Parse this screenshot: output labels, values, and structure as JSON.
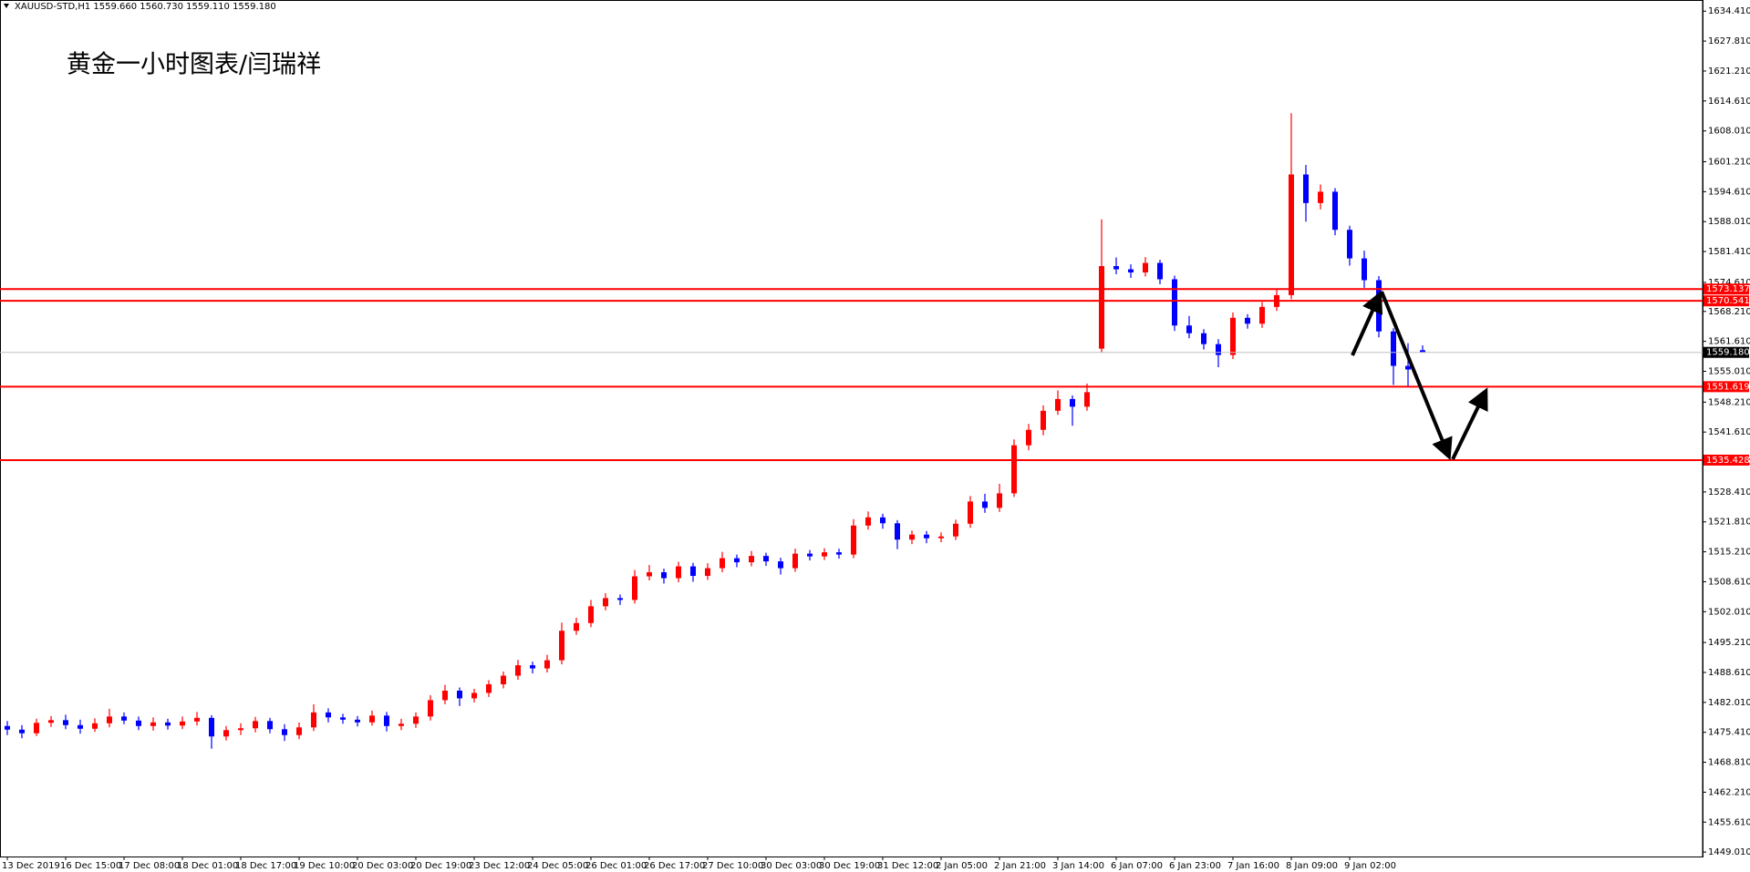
{
  "chart_data": {
    "type": "candlestick",
    "header": "XAUUSD-STD,H1  1559.660 1560.730 1559.110 1559.180",
    "annotation": "黄金一小时图表/闫瑞祥",
    "up_color": "#ff0000",
    "down_color": "#0000ff",
    "categories": [
      "13 Dec 2019",
      null,
      null,
      null,
      "16 Dec 15:00",
      null,
      null,
      null,
      "17 Dec 08:00",
      null,
      null,
      null,
      "18 Dec 01:00",
      null,
      null,
      null,
      "18 Dec 17:00",
      null,
      null,
      null,
      "19 Dec 10:00",
      null,
      null,
      null,
      "20 Dec 03:00",
      null,
      null,
      null,
      "20 Dec 19:00",
      null,
      null,
      null,
      "23 Dec 12:00",
      null,
      null,
      null,
      "24 Dec 05:00",
      null,
      null,
      null,
      "26 Dec 01:00",
      null,
      null,
      null,
      "26 Dec 17:00",
      null,
      null,
      null,
      "27 Dec 10:00",
      null,
      null,
      null,
      "30 Dec 03:00",
      null,
      null,
      null,
      "30 Dec 19:00",
      null,
      null,
      null,
      "31 Dec 12:00",
      null,
      null,
      null,
      "2 Jan 05:00",
      null,
      null,
      null,
      "2 Jan 21:00",
      null,
      null,
      null,
      "3 Jan 14:00",
      null,
      null,
      null,
      "6 Jan 07:00",
      null,
      null,
      null,
      "6 Jan 23:00",
      null,
      null,
      null,
      "7 Jan 16:00",
      null,
      null,
      null,
      "8 Jan 09:00",
      null,
      null,
      null,
      "9 Jan 02:00",
      null,
      null,
      null,
      null,
      null
    ],
    "open": [
      1476.8,
      1476.0,
      1475.2,
      1477.5,
      1478.1,
      1477.0,
      1476.2,
      1477.4,
      1478.9,
      1478.0,
      1476.8,
      1477.6,
      1476.9,
      1477.8,
      1478.6,
      1474.5,
      1475.9,
      1476.3,
      1477.9,
      1476.1,
      1474.8,
      1476.5,
      1479.8,
      1478.7,
      1478.2,
      1477.6,
      1479.1,
      1476.8,
      1477.3,
      1478.9,
      1482.5,
      1484.6,
      1482.9,
      1484.1,
      1486.0,
      1487.9,
      1490.2,
      1489.5,
      1491.3,
      1497.8,
      1499.5,
      1503.2,
      1505.0,
      1504.6,
      1509.8,
      1510.7,
      1509.4,
      1512.0,
      1509.9,
      1511.6,
      1513.8,
      1512.9,
      1514.3,
      1513.1,
      1511.6,
      1514.8,
      1514.2,
      1515.1,
      1514.6,
      1521.0,
      1522.8,
      1521.5,
      1517.9,
      1519.0,
      1518.2,
      1518.6,
      1521.4,
      1526.3,
      1524.9,
      1528.1,
      1538.7,
      1542.1,
      1546.3,
      1548.9,
      1547.2,
      1560.0,
      1578.2,
      1577.5,
      1576.8,
      1578.9,
      1575.3,
      1565.1,
      1563.4,
      1561.0,
      1558.6,
      1566.8,
      1565.5,
      1569.2,
      1571.8,
      1598.4,
      1592.1,
      1594.6,
      1586.2,
      1579.9,
      1575.1,
      1563.8,
      1556.2,
      1559.66
    ],
    "high": [
      1477.9,
      1477.0,
      1478.4,
      1479.0,
      1479.3,
      1478.2,
      1478.5,
      1480.6,
      1479.8,
      1478.9,
      1478.7,
      1478.4,
      1478.9,
      1479.9,
      1479.2,
      1476.8,
      1477.4,
      1478.8,
      1478.6,
      1477.2,
      1477.6,
      1481.6,
      1480.7,
      1479.5,
      1479.0,
      1480.2,
      1479.9,
      1478.4,
      1479.8,
      1483.6,
      1485.9,
      1485.3,
      1485.0,
      1486.9,
      1488.8,
      1491.4,
      1491.0,
      1492.5,
      1499.6,
      1500.7,
      1504.6,
      1506.1,
      1505.8,
      1511.2,
      1512.3,
      1511.5,
      1513.0,
      1512.8,
      1512.7,
      1515.2,
      1514.6,
      1515.4,
      1515.0,
      1513.9,
      1515.9,
      1515.6,
      1516.0,
      1515.9,
      1522.4,
      1524.1,
      1523.6,
      1522.2,
      1519.9,
      1519.8,
      1519.5,
      1522.3,
      1527.5,
      1528.0,
      1530.2,
      1540.0,
      1543.4,
      1547.5,
      1550.8,
      1549.7,
      1552.3,
      1588.5,
      1580.1,
      1578.6,
      1580.2,
      1579.6,
      1576.1,
      1567.2,
      1564.3,
      1562.1,
      1568.0,
      1567.6,
      1570.3,
      1573.0,
      1611.9,
      1600.5,
      1596.2,
      1595.4,
      1587.1,
      1581.6,
      1576.0,
      1564.5,
      1561.2,
      1560.73
    ],
    "low": [
      1474.8,
      1474.1,
      1474.6,
      1476.6,
      1476.1,
      1475.1,
      1475.5,
      1476.5,
      1477.2,
      1475.9,
      1475.8,
      1476.0,
      1476.1,
      1476.9,
      1471.8,
      1473.6,
      1474.8,
      1475.4,
      1475.2,
      1473.5,
      1473.9,
      1475.7,
      1477.6,
      1477.3,
      1476.7,
      1476.9,
      1475.6,
      1475.9,
      1476.4,
      1478.0,
      1481.6,
      1481.2,
      1482.0,
      1483.2,
      1485.1,
      1487.0,
      1488.4,
      1488.6,
      1490.4,
      1496.9,
      1498.6,
      1502.3,
      1503.5,
      1503.8,
      1508.9,
      1508.2,
      1508.5,
      1508.6,
      1509.0,
      1510.7,
      1511.8,
      1512.0,
      1512.1,
      1510.2,
      1510.8,
      1513.3,
      1513.4,
      1513.7,
      1513.8,
      1520.1,
      1520.3,
      1515.8,
      1516.9,
      1517.1,
      1517.3,
      1517.8,
      1520.5,
      1523.8,
      1524.0,
      1527.3,
      1537.6,
      1540.9,
      1545.4,
      1543.0,
      1546.3,
      1559.2,
      1576.4,
      1575.6,
      1575.9,
      1574.2,
      1563.9,
      1562.3,
      1559.8,
      1555.9,
      1557.7,
      1564.4,
      1564.6,
      1568.3,
      1570.9,
      1588.0,
      1590.7,
      1585.0,
      1578.3,
      1573.4,
      1562.5,
      1552.0,
      1551.7,
      1559.11
    ],
    "close": [
      1476.0,
      1475.2,
      1477.5,
      1478.1,
      1477.0,
      1476.2,
      1477.4,
      1478.9,
      1478.0,
      1476.8,
      1477.6,
      1476.9,
      1477.8,
      1478.6,
      1474.5,
      1475.9,
      1476.3,
      1477.9,
      1476.1,
      1474.8,
      1476.5,
      1479.8,
      1478.7,
      1478.2,
      1477.6,
      1479.1,
      1476.8,
      1477.3,
      1478.9,
      1482.5,
      1484.6,
      1482.9,
      1484.1,
      1486.0,
      1487.9,
      1490.2,
      1489.5,
      1491.3,
      1497.8,
      1499.5,
      1503.2,
      1505.0,
      1504.6,
      1509.8,
      1510.7,
      1509.4,
      1512.0,
      1509.9,
      1511.6,
      1513.8,
      1512.9,
      1514.3,
      1513.1,
      1511.6,
      1514.8,
      1514.2,
      1515.1,
      1514.6,
      1521.0,
      1522.8,
      1521.5,
      1517.9,
      1519.0,
      1518.2,
      1518.6,
      1521.4,
      1526.3,
      1524.9,
      1528.1,
      1538.7,
      1542.1,
      1546.3,
      1548.9,
      1547.2,
      1550.4,
      1578.2,
      1577.5,
      1576.8,
      1578.9,
      1575.3,
      1565.1,
      1563.4,
      1561.0,
      1558.6,
      1566.8,
      1565.5,
      1569.2,
      1571.8,
      1598.4,
      1592.1,
      1594.6,
      1586.2,
      1579.9,
      1575.1,
      1563.8,
      1556.2,
      1555.4,
      1559.18
    ],
    "ylim": [
      1448.03,
      1636.87
    ],
    "yticks": [
      {
        "value": 1634.41,
        "label": "1634.410"
      },
      {
        "value": 1627.81,
        "label": "1627.810"
      },
      {
        "value": 1621.21,
        "label": "1621.210"
      },
      {
        "value": 1614.61,
        "label": "1614.610"
      },
      {
        "value": 1608.01,
        "label": "1608.010"
      },
      {
        "value": 1601.21,
        "label": "1601.210"
      },
      {
        "value": 1594.61,
        "label": "1594.610"
      },
      {
        "value": 1588.01,
        "label": "1588.010"
      },
      {
        "value": 1581.41,
        "label": "1581.410"
      },
      {
        "value": 1574.61,
        "label": "1574.610"
      },
      {
        "value": 1568.21,
        "label": "1568.210"
      },
      {
        "value": 1561.61,
        "label": "1561.610"
      },
      {
        "value": 1555.01,
        "label": "1555.010"
      },
      {
        "value": 1548.21,
        "label": "1548.210"
      },
      {
        "value": 1541.61,
        "label": "1541.610"
      },
      {
        "value": 1535.01,
        "label": "1535.010"
      },
      {
        "value": 1528.41,
        "label": "1528.410"
      },
      {
        "value": 1521.81,
        "label": "1521.810"
      },
      {
        "value": 1515.21,
        "label": "1515.210"
      },
      {
        "value": 1508.61,
        "label": "1508.610"
      },
      {
        "value": 1502.01,
        "label": "1502.010"
      },
      {
        "value": 1495.21,
        "label": "1495.210"
      },
      {
        "value": 1488.61,
        "label": "1488.610"
      },
      {
        "value": 1482.01,
        "label": "1482.010"
      },
      {
        "value": 1475.41,
        "label": "1475.410"
      },
      {
        "value": 1468.81,
        "label": "1468.810"
      },
      {
        "value": 1462.21,
        "label": "1462.210"
      },
      {
        "value": 1455.61,
        "label": "1455.610"
      },
      {
        "value": 1449.01,
        "label": "1449.010"
      }
    ],
    "levels": [
      {
        "value": 1573.137,
        "label": "1573.137",
        "color": "#ff0000"
      },
      {
        "value": 1570.541,
        "label": "1570.541",
        "color": "#ff0000"
      },
      {
        "value": 1551.619,
        "label": "1551.619",
        "color": "#ff0000"
      },
      {
        "value": 1535.428,
        "label": "1535.428",
        "color": "#ff0000"
      },
      {
        "value": 1559.18,
        "label": "1559.180",
        "color": "#000000"
      }
    ]
  }
}
